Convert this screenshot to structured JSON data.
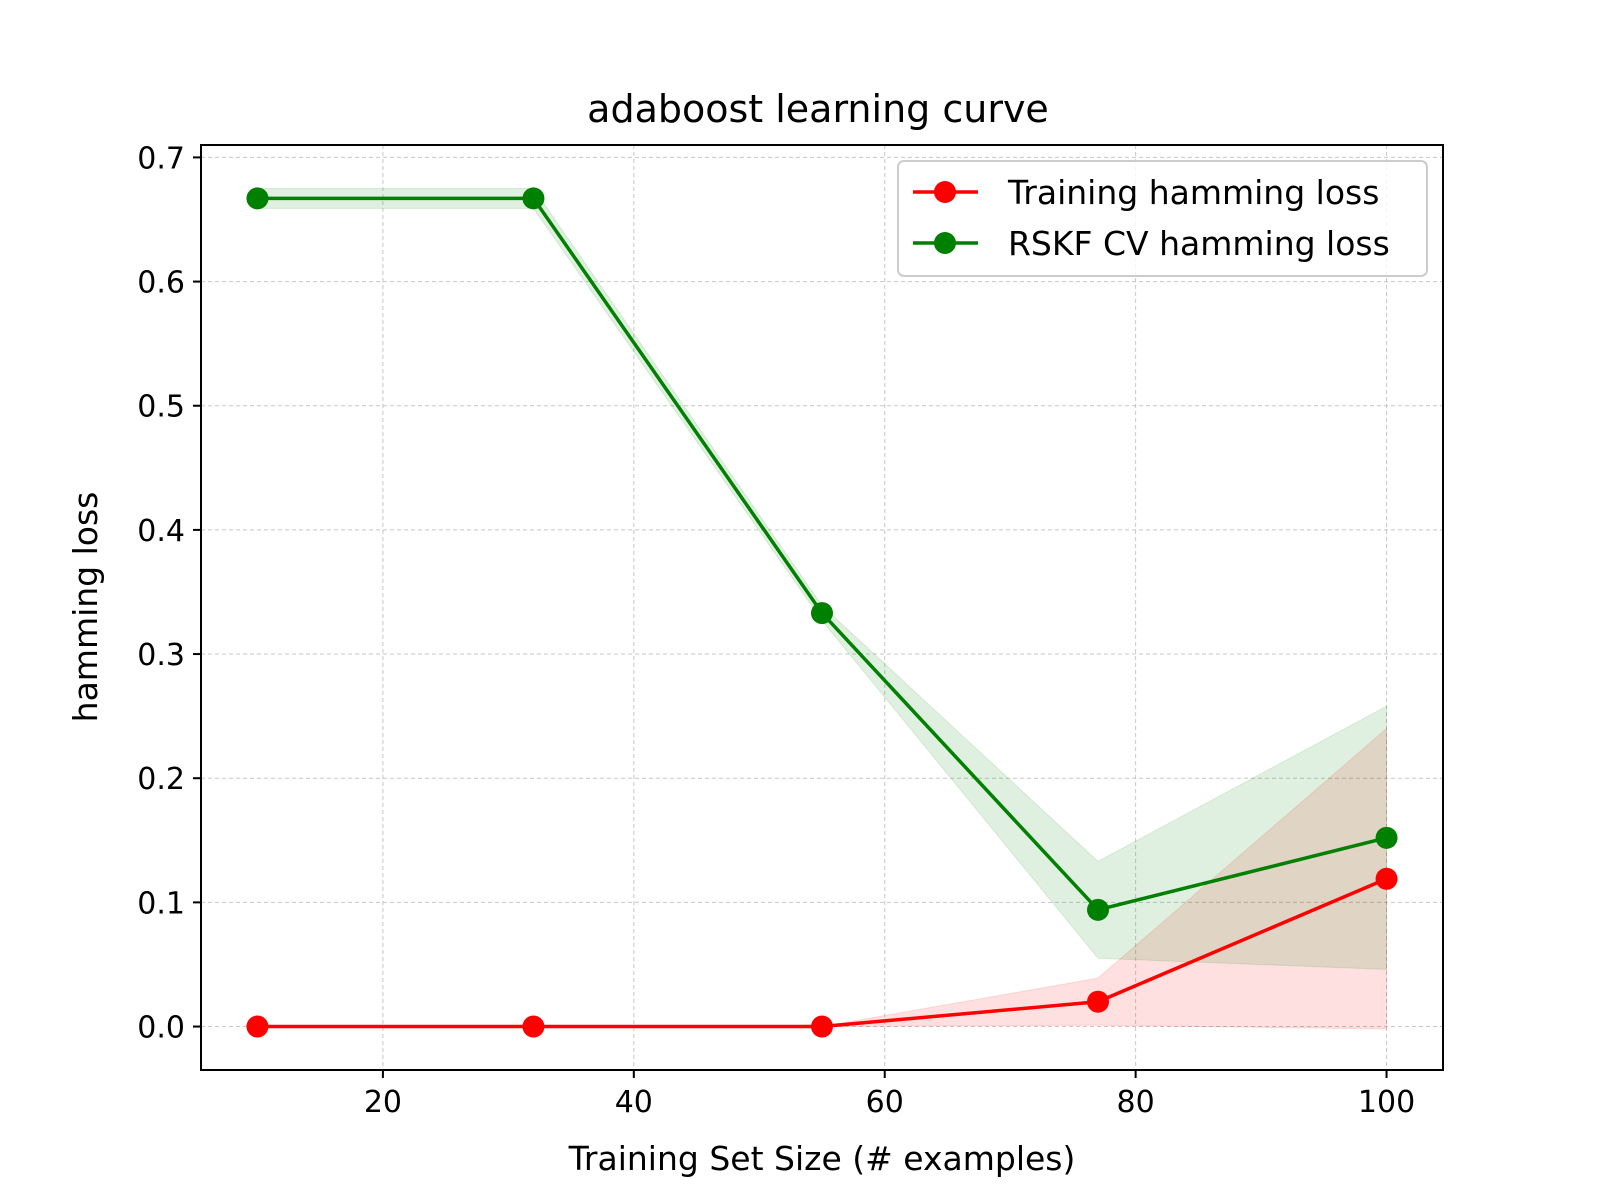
{
  "chart_data": {
    "type": "line",
    "title": "adaboost learning curve",
    "xlabel": "Training Set Size (# examples)",
    "ylabel": "hamming loss",
    "xlim": [
      5.5,
      104.5
    ],
    "ylim": [
      -0.035,
      0.71
    ],
    "xticks": [
      20,
      40,
      60,
      80,
      100
    ],
    "yticks": [
      0.0,
      0.1,
      0.2,
      0.3,
      0.4,
      0.5,
      0.6,
      0.7
    ],
    "grid": true,
    "legend_position": "top-right",
    "x": [
      10,
      32,
      55,
      77,
      100
    ],
    "series": [
      {
        "name": "Training hamming loss",
        "color": "#ff0000",
        "fill_color": "#ff0000",
        "values": [
          0.0,
          0.0,
          0.0,
          0.02,
          0.119
        ],
        "lower": [
          0.0,
          0.0,
          0.0,
          0.001,
          -0.002
        ],
        "upper": [
          0.0,
          0.0,
          0.0,
          0.039,
          0.24
        ]
      },
      {
        "name": "RSKF CV hamming loss",
        "color": "#008000",
        "fill_color": "#008000",
        "values": [
          0.667,
          0.667,
          0.333,
          0.094,
          0.152
        ],
        "lower": [
          0.659,
          0.659,
          0.327,
          0.055,
          0.046
        ],
        "upper": [
          0.675,
          0.675,
          0.339,
          0.133,
          0.258
        ]
      }
    ]
  }
}
